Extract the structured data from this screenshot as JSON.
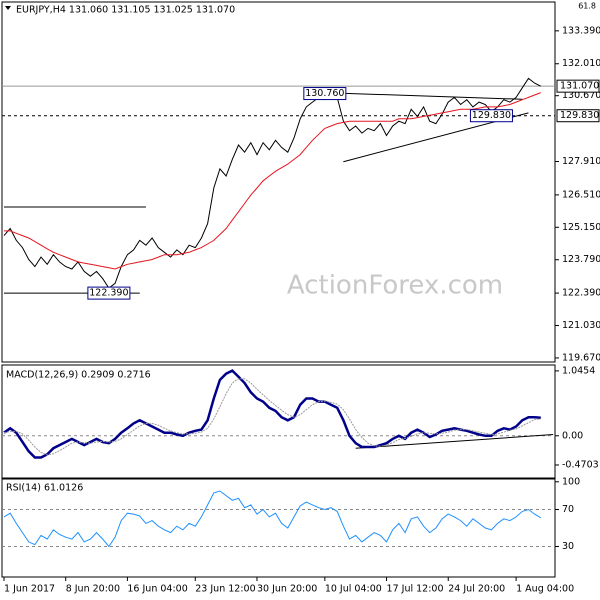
{
  "chart_data": [
    {
      "type": "line",
      "title": "EURJPY,H4  131.060 131.105 131.025 131.070",
      "corner_label": "61.8",
      "watermark": "ActionForex.com",
      "ylim": [
        119.5,
        134.6
      ],
      "yticks": [
        {
          "value": 133.39,
          "label": "133.390"
        },
        {
          "value": 132.01,
          "label": "132.010"
        },
        {
          "value": 130.67,
          "label": "130.670"
        },
        {
          "value": 127.91,
          "label": "127.910"
        },
        {
          "value": 126.51,
          "label": "126.510"
        },
        {
          "value": 125.15,
          "label": "125.150"
        },
        {
          "value": 123.79,
          "label": "123.790"
        },
        {
          "value": 122.39,
          "label": "122.390"
        },
        {
          "value": 121.03,
          "label": "121.030"
        },
        {
          "value": 119.67,
          "label": "119.670"
        }
      ],
      "series": [
        {
          "color": "#000000",
          "values": [
            124.8,
            125.1,
            124.6,
            124.3,
            123.8,
            123.5,
            123.9,
            123.6,
            124.0,
            123.7,
            123.5,
            123.4,
            123.7,
            123.3,
            123.1,
            123.3,
            123.0,
            122.6,
            122.8,
            123.5,
            124.0,
            124.2,
            124.6,
            124.4,
            124.7,
            124.3,
            124.1,
            123.9,
            124.2,
            124.0,
            124.4,
            124.3,
            124.7,
            125.3,
            126.8,
            127.6,
            127.3,
            128.0,
            128.6,
            128.3,
            128.7,
            128.2,
            128.7,
            128.4,
            128.8,
            128.5,
            128.3,
            128.9,
            129.7,
            130.2,
            130.4,
            130.6,
            130.5,
            130.8,
            130.6,
            129.6,
            129.2,
            129.4,
            129.1,
            129.3,
            129.2,
            129.5,
            129.0,
            129.4,
            129.6,
            129.5,
            130.1,
            129.8,
            130.2,
            129.6,
            129.5,
            129.9,
            130.4,
            130.6,
            130.3,
            130.5,
            130.2,
            130.4,
            130.3,
            130.0,
            130.2,
            130.5,
            130.4,
            130.6,
            131.0,
            131.4,
            131.2,
            131.07
          ]
        },
        {
          "color": "#e8141e",
          "values": [
            125.0,
            125.0,
            124.9,
            124.8,
            124.7,
            124.55,
            124.4,
            124.25,
            124.1,
            124.0,
            123.9,
            123.8,
            123.7,
            123.65,
            123.6,
            123.55,
            123.5,
            123.45,
            123.4,
            123.5,
            123.6,
            123.65,
            123.7,
            123.75,
            123.8,
            123.9,
            124.0,
            124.0,
            124.0,
            124.05,
            124.1,
            124.2,
            124.3,
            124.45,
            124.6,
            124.85,
            125.1,
            125.45,
            125.8,
            126.15,
            126.5,
            126.8,
            127.1,
            127.3,
            127.5,
            127.65,
            127.8,
            128.0,
            128.2,
            128.5,
            128.8,
            129.05,
            129.3,
            129.4,
            129.5,
            129.55,
            129.6,
            129.6,
            129.6,
            129.6,
            129.6,
            129.6,
            129.6,
            129.6,
            129.7,
            129.7,
            129.7,
            129.75,
            129.8,
            129.85,
            129.9,
            129.95,
            130.0,
            130.05,
            130.1,
            130.1,
            130.1,
            130.15,
            130.2,
            130.2,
            130.2,
            130.25,
            130.3,
            130.4,
            130.5,
            130.6,
            130.7,
            130.8
          ]
        }
      ],
      "markers": [
        {
          "value": 131.07,
          "label": "131.070",
          "style": "solid"
        },
        {
          "value": 129.83,
          "label": "129.830",
          "style": "dashed"
        }
      ],
      "annotations": [
        {
          "label": "130.760",
          "value": 130.76,
          "index": 52
        },
        {
          "label": "122.390",
          "value": 122.39,
          "index": 17
        },
        {
          "label": "129.830",
          "value": 129.83,
          "index": 79
        }
      ],
      "trendlines": [
        {
          "x": [
            0,
            23
          ],
          "y": [
            126.0,
            126.0
          ]
        },
        {
          "x": [
            0,
            22
          ],
          "y": [
            122.39,
            122.39
          ]
        },
        {
          "x": [
            54,
            84
          ],
          "y": [
            130.78,
            130.52
          ]
        },
        {
          "x": [
            55,
            85
          ],
          "y": [
            127.9,
            129.95
          ]
        }
      ]
    },
    {
      "type": "line",
      "title": "MACD(12,26,9) 0.2909 0.2716",
      "ylim": [
        -0.68,
        1.14
      ],
      "yticks": [
        1.0454,
        {
          "value": 0,
          "label": "0.00"
        },
        -0.4703
      ],
      "levels": [
        0
      ],
      "series": [
        {
          "color": "#00008b",
          "width": 2.5,
          "values": [
            0.05,
            0.12,
            0.05,
            -0.1,
            -0.25,
            -0.35,
            -0.35,
            -0.3,
            -0.2,
            -0.15,
            -0.1,
            -0.05,
            -0.1,
            -0.15,
            -0.1,
            -0.05,
            -0.1,
            -0.12,
            -0.05,
            0.05,
            0.12,
            0.2,
            0.25,
            0.2,
            0.15,
            0.1,
            0.05,
            0.05,
            0.02,
            0.0,
            0.05,
            0.08,
            0.1,
            0.25,
            0.6,
            0.9,
            1.0,
            1.05,
            0.95,
            0.85,
            0.7,
            0.6,
            0.55,
            0.45,
            0.4,
            0.3,
            0.25,
            0.3,
            0.5,
            0.6,
            0.6,
            0.55,
            0.55,
            0.5,
            0.45,
            0.25,
            0.0,
            -0.12,
            -0.18,
            -0.18,
            -0.18,
            -0.15,
            -0.12,
            -0.05,
            0.0,
            -0.05,
            0.05,
            0.1,
            0.05,
            -0.02,
            0.02,
            0.08,
            0.1,
            0.12,
            0.1,
            0.08,
            0.05,
            0.02,
            0.0,
            0.0,
            0.08,
            0.12,
            0.1,
            0.15,
            0.25,
            0.3,
            0.3,
            0.29
          ]
        },
        {
          "color": "#9a9a9a",
          "width": 1,
          "values": [
            0.05,
            0.07,
            0.07,
            0.03,
            -0.07,
            -0.18,
            -0.27,
            -0.31,
            -0.29,
            -0.24,
            -0.18,
            -0.12,
            -0.1,
            -0.11,
            -0.12,
            -0.1,
            -0.09,
            -0.1,
            -0.09,
            -0.05,
            0.02,
            0.09,
            0.16,
            0.2,
            0.2,
            0.17,
            0.12,
            0.08,
            0.05,
            0.03,
            0.03,
            0.04,
            0.06,
            0.12,
            0.27,
            0.47,
            0.68,
            0.85,
            0.92,
            0.92,
            0.85,
            0.75,
            0.66,
            0.57,
            0.49,
            0.41,
            0.34,
            0.3,
            0.34,
            0.42,
            0.5,
            0.55,
            0.56,
            0.54,
            0.51,
            0.42,
            0.27,
            0.1,
            -0.03,
            -0.12,
            -0.16,
            -0.17,
            -0.15,
            -0.11,
            -0.06,
            -0.04,
            -0.01,
            0.03,
            0.05,
            0.04,
            0.03,
            0.04,
            0.06,
            0.09,
            0.1,
            0.1,
            0.08,
            0.06,
            0.04,
            0.02,
            0.03,
            0.06,
            0.09,
            0.11,
            0.16,
            0.21,
            0.26,
            0.27
          ]
        }
      ],
      "trendlines": [
        {
          "x": [
            57,
            89
          ],
          "y": [
            -0.2,
            0.02
          ]
        }
      ]
    },
    {
      "type": "line",
      "title": "RSI(14) 61.0126",
      "ylim": [
        -3,
        103
      ],
      "yticks": [
        100,
        70,
        30
      ],
      "levels": [
        70,
        30
      ],
      "x": [
        "1 Jun 2017",
        null,
        null,
        null,
        null,
        null,
        null,
        null,
        null,
        null,
        "8 Jun 20:00",
        null,
        null,
        null,
        null,
        null,
        null,
        null,
        null,
        null,
        "16 Jun 04:00",
        null,
        null,
        null,
        null,
        null,
        null,
        null,
        null,
        null,
        null,
        "23 Jun 12:00",
        null,
        null,
        null,
        null,
        null,
        null,
        null,
        null,
        null,
        "30 Jun 20:00",
        null,
        null,
        null,
        null,
        null,
        null,
        null,
        null,
        null,
        null,
        "10 Jul 04:00",
        null,
        null,
        null,
        null,
        null,
        null,
        null,
        null,
        null,
        "17 Jul 12:00",
        null,
        null,
        null,
        null,
        null,
        null,
        null,
        null,
        null,
        "24 Jul 20:00",
        null,
        null,
        null,
        null,
        null,
        null,
        null,
        null,
        null,
        null,
        "1 Aug 04:00",
        null,
        null,
        null,
        null
      ],
      "series": [
        {
          "color": "#1e90ff",
          "width": 1,
          "values": [
            62,
            66,
            55,
            45,
            35,
            32,
            42,
            38,
            48,
            43,
            40,
            38,
            45,
            35,
            38,
            45,
            38,
            30,
            40,
            58,
            66,
            65,
            63,
            55,
            58,
            52,
            48,
            45,
            52,
            48,
            55,
            52,
            62,
            75,
            88,
            90,
            85,
            80,
            82,
            72,
            75,
            65,
            70,
            62,
            66,
            55,
            50,
            62,
            74,
            78,
            75,
            72,
            70,
            72,
            68,
            52,
            38,
            42,
            35,
            40,
            45,
            42,
            35,
            48,
            55,
            45,
            60,
            62,
            52,
            45,
            50,
            60,
            65,
            62,
            58,
            52,
            60,
            55,
            50,
            48,
            55,
            60,
            58,
            62,
            68,
            70,
            65,
            61
          ]
        }
      ]
    }
  ]
}
